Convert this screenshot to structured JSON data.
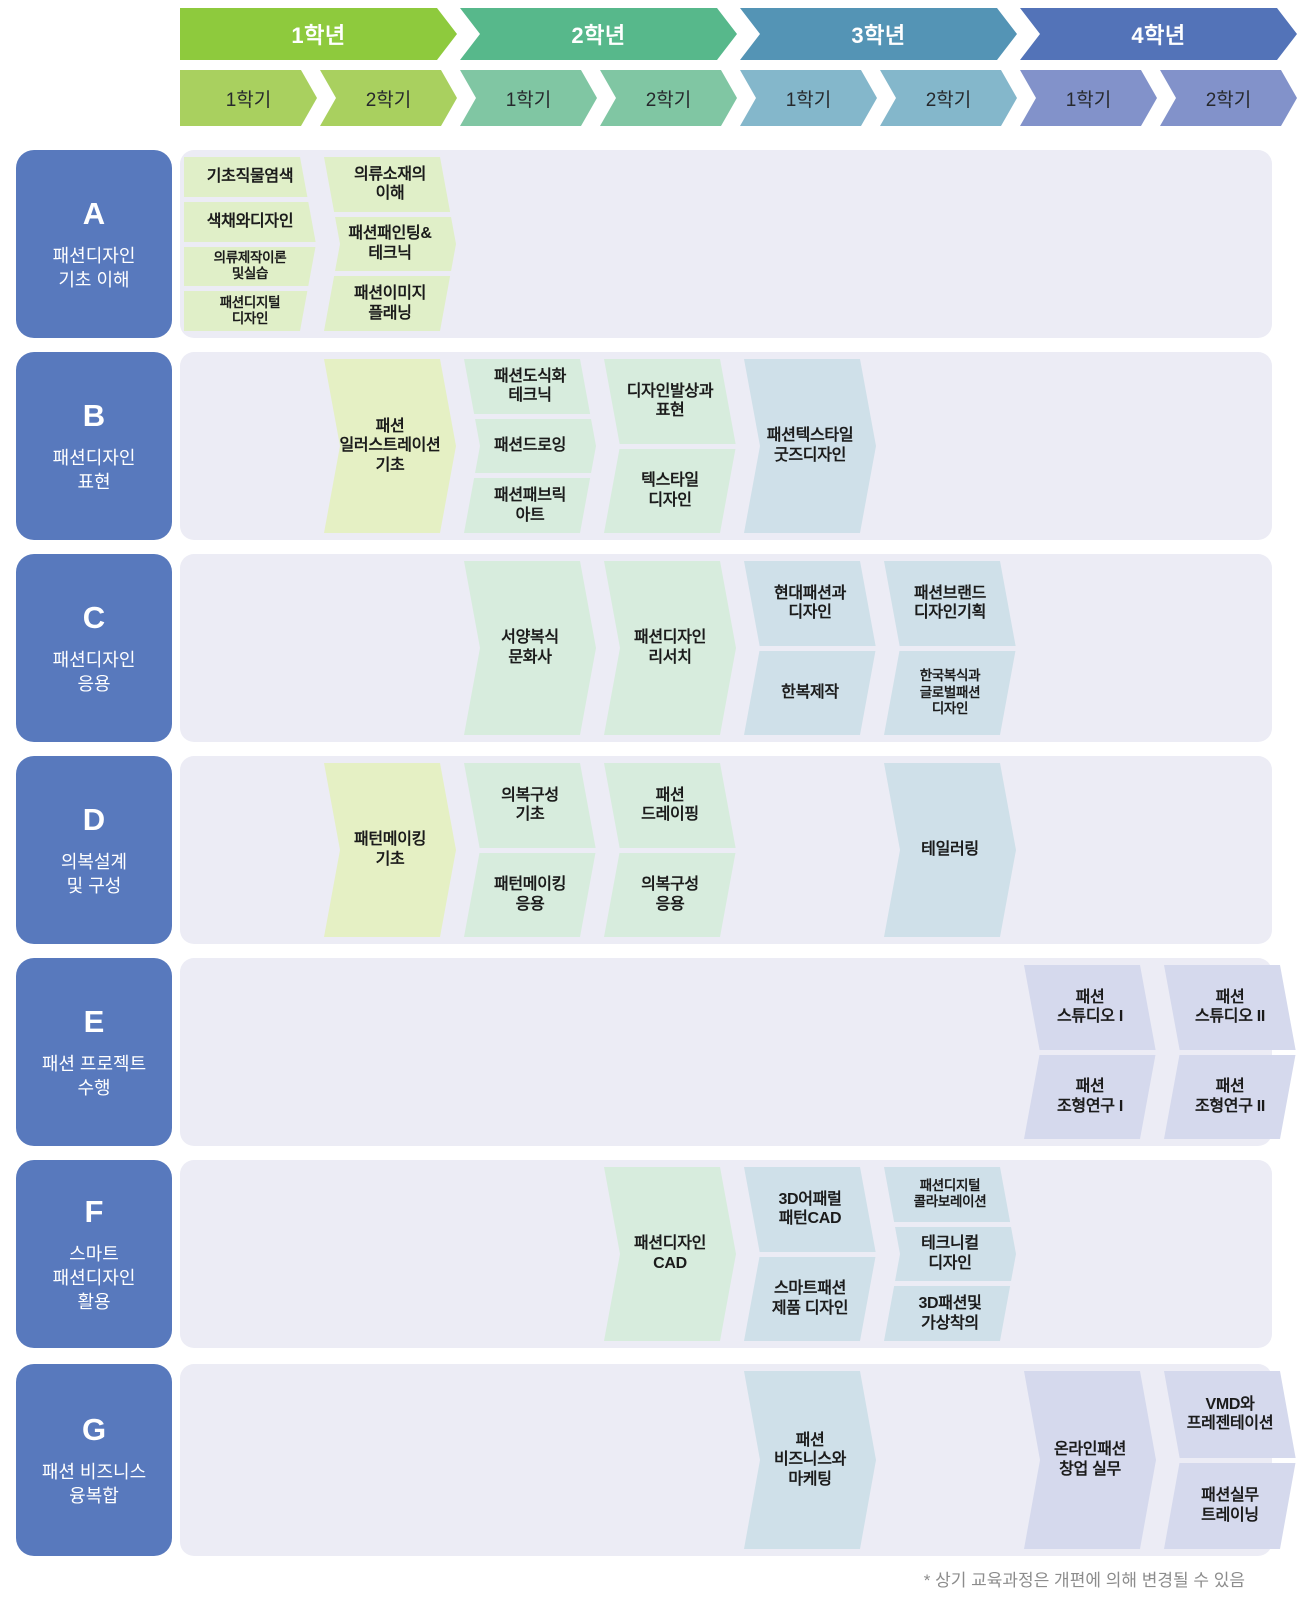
{
  "header": {
    "years": [
      {
        "label": "1학년",
        "semesters": [
          "1학기",
          "2학기"
        ]
      },
      {
        "label": "2학년",
        "semesters": [
          "1학기",
          "2학기"
        ]
      },
      {
        "label": "3학년",
        "semesters": [
          "1학기",
          "2학기"
        ]
      },
      {
        "label": "4학년",
        "semesters": [
          "1학기",
          "2학기"
        ]
      }
    ]
  },
  "palette": {
    "year_band": [
      "#8eca3d",
      "#57b88b",
      "#5494b5",
      "#5373b8"
    ],
    "semester": [
      "#a9d05f",
      "#80c6a3",
      "#84b7cb",
      "#8292ca"
    ],
    "tag": {
      "g1": "#e0efc8",
      "g1b": "#e5f0c4",
      "g2": "#d7ecdd",
      "g3": "#cfe0e9",
      "g4": "#d5d9ed"
    },
    "block": "#5879bd",
    "panel": "#ececf5",
    "note": "#8c8c8c"
  },
  "rows": [
    {
      "id": "A",
      "title": "패션디자인\n기초 이해",
      "groups": [
        {
          "col": 1,
          "palette": "g1",
          "items": [
            {
              "label": "기초직물염색"
            },
            {
              "label": "색채와디자인"
            },
            {
              "label": "의류제작이론\n및실습",
              "small": true
            },
            {
              "label": "패션디지털\n디자인",
              "small": true
            }
          ]
        },
        {
          "col": 2,
          "palette": "g1",
          "items": [
            {
              "label": "의류소재의\n이해"
            },
            {
              "label": "패션패인팅&\n테크닉"
            },
            {
              "label": "패션이미지\n플래닝"
            }
          ]
        }
      ]
    },
    {
      "id": "B",
      "title": "패션디자인\n표현",
      "groups": [
        {
          "col": 2,
          "palette": "g1b",
          "items": [
            {
              "label": "패션\n일러스트레이션\n기초"
            }
          ]
        },
        {
          "col": 3,
          "palette": "g2",
          "items": [
            {
              "label": "패션도식화\n테크닉"
            },
            {
              "label": "패션드로잉"
            },
            {
              "label": "패션패브릭\n아트"
            }
          ]
        },
        {
          "col": 4,
          "palette": "g2",
          "items": [
            {
              "label": "디자인발상과\n표현"
            },
            {
              "label": "텍스타일\n디자인"
            }
          ]
        },
        {
          "col": 5,
          "palette": "g3",
          "items": [
            {
              "label": "패션텍스타일\n굿즈디자인"
            }
          ]
        }
      ]
    },
    {
      "id": "C",
      "title": "패션디자인\n응용",
      "groups": [
        {
          "col": 3,
          "palette": "g2",
          "items": [
            {
              "label": "서양복식\n문화사"
            }
          ]
        },
        {
          "col": 4,
          "palette": "g2",
          "items": [
            {
              "label": "패션디자인\n리서치"
            }
          ]
        },
        {
          "col": 5,
          "palette": "g3",
          "items": [
            {
              "label": "현대패션과\n디자인"
            },
            {
              "label": "한복제작"
            }
          ]
        },
        {
          "col": 6,
          "palette": "g3",
          "items": [
            {
              "label": "패션브랜드\n디자인기획"
            },
            {
              "label": "한국복식과\n글로벌패션\n디자인",
              "small": true
            }
          ]
        }
      ]
    },
    {
      "id": "D",
      "title": "의복설계\n및 구성",
      "groups": [
        {
          "col": 2,
          "palette": "g1b",
          "items": [
            {
              "label": "패턴메이킹\n기초"
            }
          ]
        },
        {
          "col": 3,
          "palette": "g2",
          "items": [
            {
              "label": "의복구성\n기초"
            },
            {
              "label": "패턴메이킹\n응용"
            }
          ]
        },
        {
          "col": 4,
          "palette": "g2",
          "items": [
            {
              "label": "패션\n드레이핑"
            },
            {
              "label": "의복구성\n응용"
            }
          ]
        },
        {
          "col": 6,
          "palette": "g3",
          "items": [
            {
              "label": "테일러링"
            }
          ]
        }
      ]
    },
    {
      "id": "E",
      "title": "패션 프로젝트\n수행",
      "groups": [
        {
          "col": 7,
          "palette": "g4",
          "items": [
            {
              "label": "패션\n스튜디오 I"
            },
            {
              "label": "패션\n조형연구 I"
            }
          ]
        },
        {
          "col": 8,
          "palette": "g4",
          "items": [
            {
              "label": "패션\n스튜디오 II"
            },
            {
              "label": "패션\n조형연구 II"
            }
          ]
        }
      ]
    },
    {
      "id": "F",
      "title": "스마트\n패션디자인\n활용",
      "groups": [
        {
          "col": 4,
          "palette": "g2",
          "items": [
            {
              "label": "패션디자인\nCAD"
            }
          ]
        },
        {
          "col": 5,
          "palette": "g3",
          "items": [
            {
              "label": "3D어패럴\n패턴CAD"
            },
            {
              "label": "스마트패션\n제품 디자인"
            }
          ]
        },
        {
          "col": 6,
          "palette": "g3",
          "items": [
            {
              "label": "패션디지털\n콜라보레이션",
              "small": true
            },
            {
              "label": "테크니컬\n디자인"
            },
            {
              "label": "3D패션및\n가상착의"
            }
          ]
        }
      ]
    },
    {
      "id": "G",
      "title": "패션 비즈니스\n융복합",
      "groups": [
        {
          "col": 5,
          "palette": "g3",
          "items": [
            {
              "label": "패션\n비즈니스와\n마케팅"
            }
          ]
        },
        {
          "col": 7,
          "palette": "g4",
          "items": [
            {
              "label": "온라인패션\n창업 실무"
            }
          ]
        },
        {
          "col": 8,
          "palette": "g4",
          "items": [
            {
              "label": "VMD와\n프레젠테이션"
            },
            {
              "label": "패션실무\n트레이닝"
            }
          ]
        }
      ]
    }
  ],
  "footer": {
    "note": "* 상기 교육과정은 개편에 의해 변경될 수 있음"
  }
}
